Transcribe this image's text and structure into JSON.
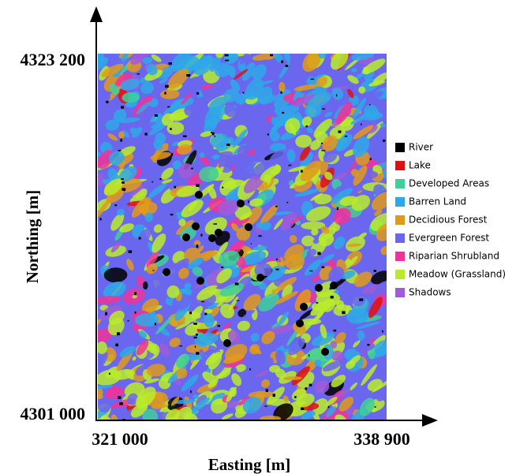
{
  "axes": {
    "x_label": "Easting [m]",
    "y_label": "Northing [m]",
    "y_top": "4323 200",
    "y_bottom": "4301 000",
    "x_left": "321 000",
    "x_right": "338 900"
  },
  "legend": [
    {
      "label": "River",
      "color": "#000000"
    },
    {
      "label": "Lake",
      "color": "#e01010"
    },
    {
      "label": "Developed Areas",
      "color": "#3ecf9a"
    },
    {
      "label": "Barren Land",
      "color": "#2fa8e8"
    },
    {
      "label": "Decidious Forest",
      "color": "#e09a1a"
    },
    {
      "label": "Evergreen Forest",
      "color": "#6a66ee"
    },
    {
      "label": "Riparian Shrubland",
      "color": "#f0329a"
    },
    {
      "label": "Meadow (Grassland)",
      "color": "#b8ec2a"
    },
    {
      "label": "Shadows",
      "color": "#a35ad8"
    }
  ]
}
